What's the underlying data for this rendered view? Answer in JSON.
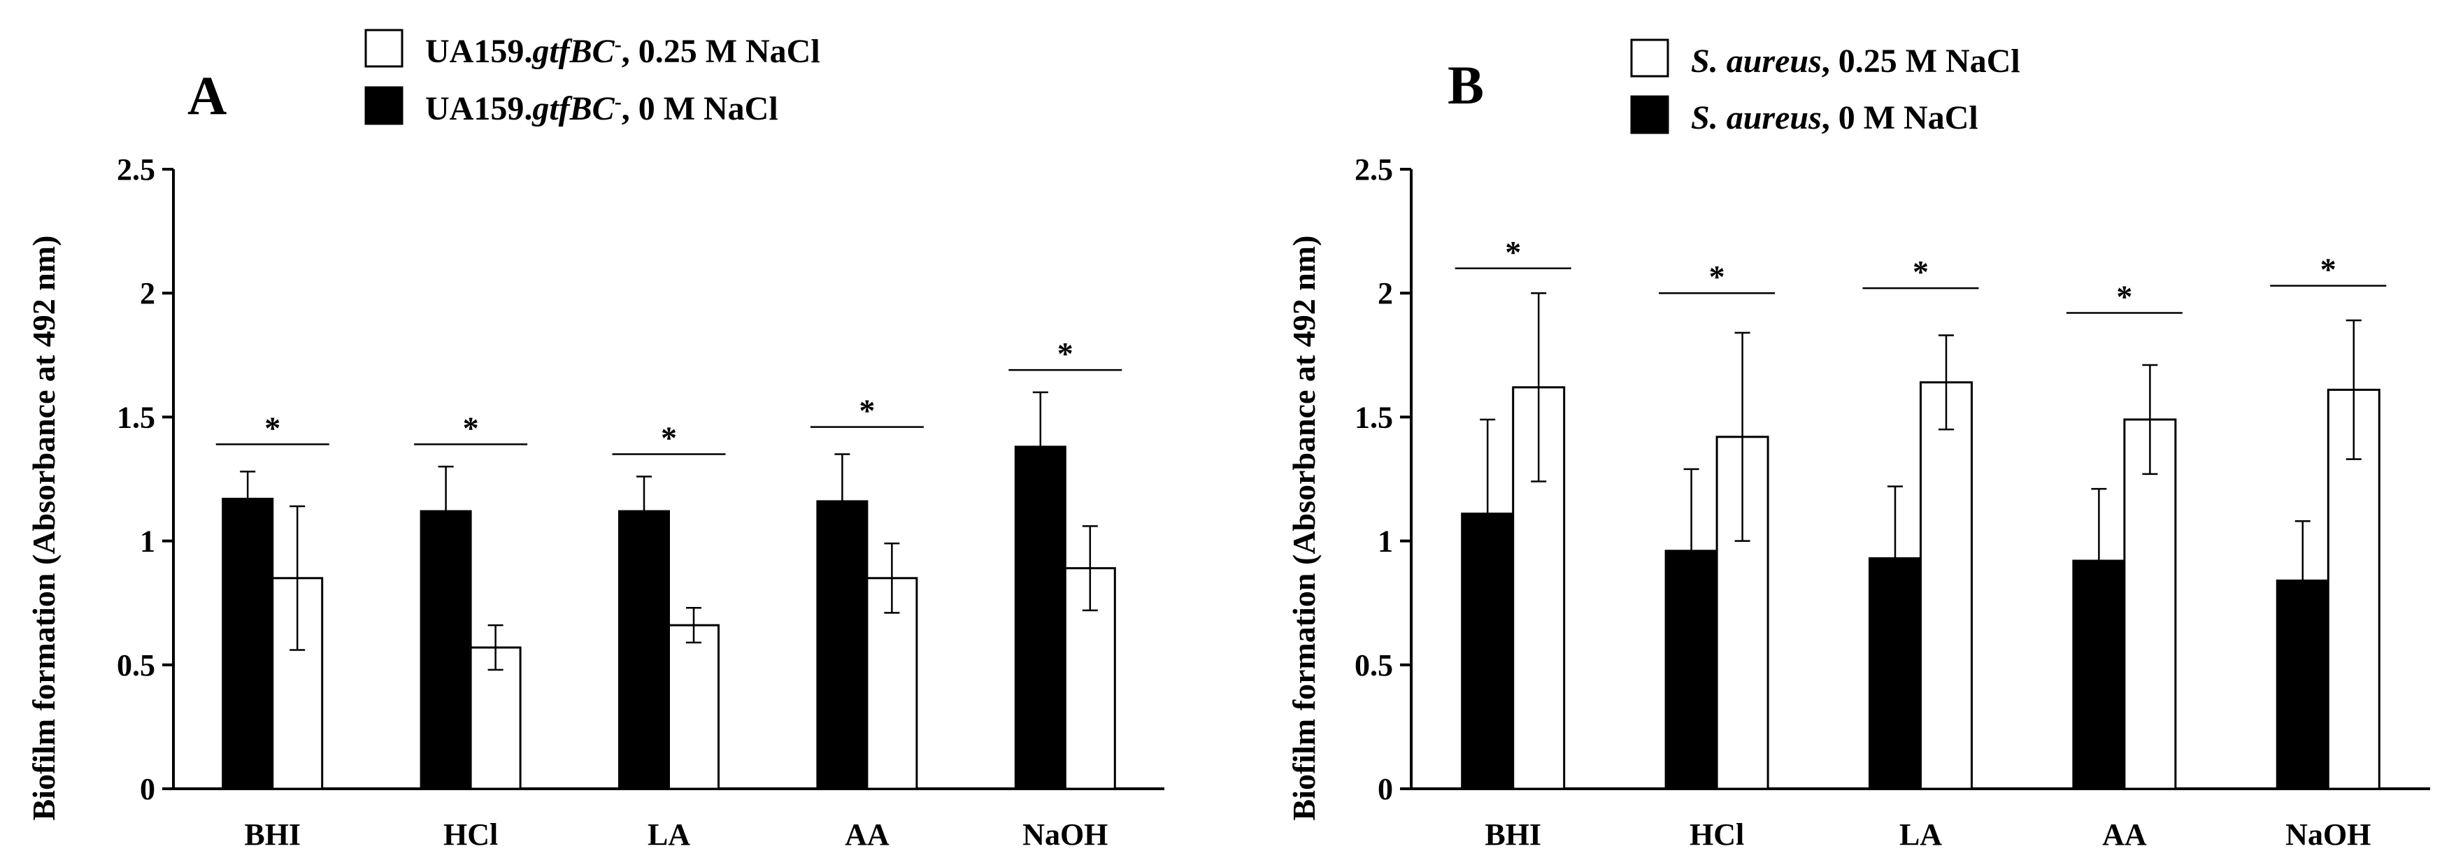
{
  "colors": {
    "black_bar": "#000000",
    "white_bar": "#ffffff",
    "stroke": "#000000"
  },
  "chart_data": [
    {
      "type": "bar",
      "panel": "A",
      "ylabel": "Biofilm formation (Absorbance at 492 nm)",
      "ylim": [
        0,
        2.5
      ],
      "yticks": [
        "0",
        "0.5",
        "1",
        "1.5",
        "2",
        "2.5"
      ],
      "categories": [
        "BHI",
        "HCl",
        "LA",
        "AA",
        "NaOH"
      ],
      "legend": [
        {
          "prefix": "UA159.",
          "italic": "gtfBC",
          "sup": "-",
          "suffix": ", 0.25 M NaCl",
          "fill": "white"
        },
        {
          "prefix": "UA159.",
          "italic": "gtfBC",
          "sup": "-",
          "suffix": ", 0 M NaCl",
          "fill": "black"
        }
      ],
      "series": [
        {
          "name": "0 M NaCl",
          "fill": "black",
          "values": [
            1.17,
            1.12,
            1.12,
            1.16,
            1.38
          ],
          "errors": [
            0.11,
            0.18,
            0.14,
            0.19,
            0.22
          ]
        },
        {
          "name": "0.25 M NaCl",
          "fill": "white",
          "values": [
            0.85,
            0.57,
            0.66,
            0.85,
            0.89
          ],
          "errors": [
            0.29,
            0.09,
            0.07,
            0.14,
            0.17
          ]
        }
      ],
      "significance": [
        {
          "label": "*",
          "level": 1.39
        },
        {
          "label": "*",
          "level": 1.39
        },
        {
          "label": "*",
          "level": 1.35
        },
        {
          "label": "*",
          "level": 1.46
        },
        {
          "label": "*",
          "level": 1.69
        }
      ]
    },
    {
      "type": "bar",
      "panel": "B",
      "ylabel": "Biofilm formation (Absorbance at 492 nm)",
      "ylim": [
        0,
        2.5
      ],
      "yticks": [
        "0",
        "0.5",
        "1",
        "1.5",
        "2",
        "2.5"
      ],
      "categories": [
        "BHI",
        "HCl",
        "LA",
        "AA",
        "NaOH"
      ],
      "legend": [
        {
          "prefix": "",
          "italic": "S. aureus",
          "sup": "",
          "suffix": ", 0.25 M NaCl",
          "fill": "white"
        },
        {
          "prefix": "",
          "italic": "S. aureus",
          "sup": "",
          "suffix": ", 0 M NaCl",
          "fill": "black"
        }
      ],
      "series": [
        {
          "name": "0 M NaCl",
          "fill": "black",
          "values": [
            1.11,
            0.96,
            0.93,
            0.92,
            0.84
          ],
          "errors": [
            0.38,
            0.33,
            0.29,
            0.29,
            0.24
          ]
        },
        {
          "name": "0.25 M NaCl",
          "fill": "white",
          "values": [
            1.62,
            1.42,
            1.64,
            1.49,
            1.61
          ],
          "errors": [
            0.38,
            0.42,
            0.19,
            0.22,
            0.28
          ]
        }
      ],
      "significance": [
        {
          "label": "*",
          "level": 2.1
        },
        {
          "label": "*",
          "level": 2.0
        },
        {
          "label": "*",
          "level": 2.02
        },
        {
          "label": "*",
          "level": 1.92
        },
        {
          "label": "*",
          "level": 2.03
        }
      ]
    }
  ]
}
